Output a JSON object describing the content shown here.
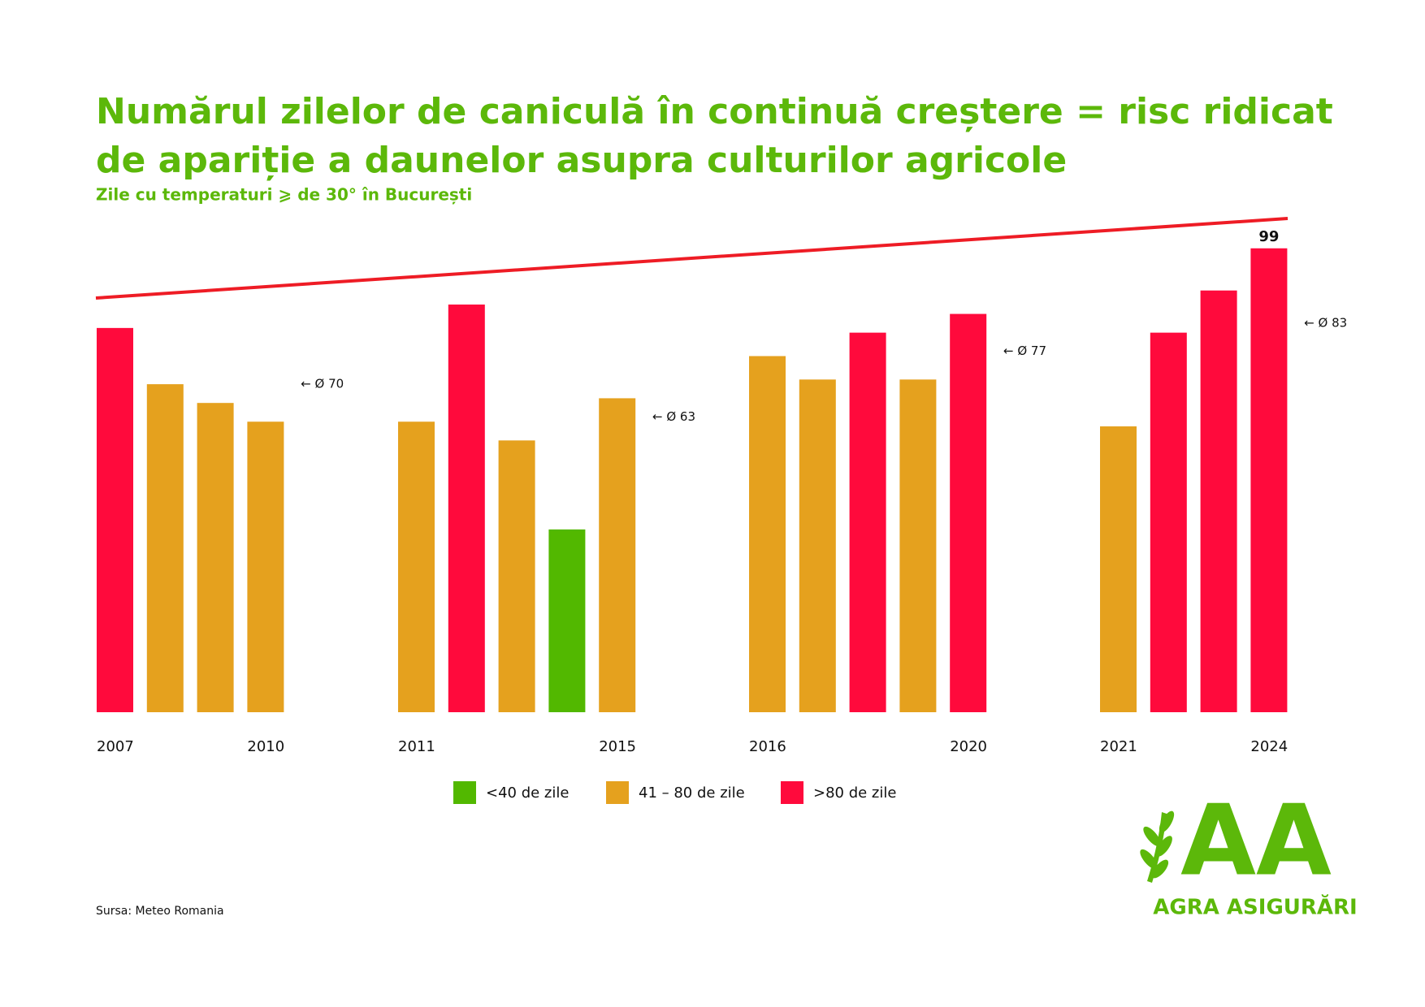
{
  "chart_data": {
    "type": "bar",
    "title": [
      "Numărul zilelor de caniculă în continuă creștere = risc ridicat",
      "de apariție a daunelor asupra culturilor agricole"
    ],
    "subtitle": "Zile cu temperaturi ⩾ de 30° în București",
    "ylim": [
      0,
      100
    ],
    "groups": [
      {
        "categories": [
          "2007",
          null,
          null,
          "2010"
        ],
        "values": [
          82,
          70,
          66,
          62
        ],
        "colors": [
          "#ff0a3c",
          "#e5a11e",
          "#e5a11e",
          "#e5a11e"
        ],
        "average": {
          "value": 70,
          "label": "← Ø 70"
        }
      },
      {
        "categories": [
          "2011",
          null,
          null,
          null,
          "2015"
        ],
        "values": [
          62,
          87,
          58,
          39,
          67
        ],
        "colors": [
          "#e5a11e",
          "#ff0a3c",
          "#e5a11e",
          "#52b800",
          "#e5a11e"
        ],
        "average": {
          "value": 63,
          "label": "← Ø 63"
        }
      },
      {
        "categories": [
          "2016",
          null,
          null,
          null,
          "2020"
        ],
        "values": [
          76,
          71,
          81,
          71,
          85
        ],
        "colors": [
          "#e5a11e",
          "#e5a11e",
          "#ff0a3c",
          "#e5a11e",
          "#ff0a3c"
        ],
        "average": {
          "value": 77,
          "label": "← Ø 77"
        }
      },
      {
        "categories": [
          "2021",
          null,
          null,
          "2024"
        ],
        "values": [
          61,
          81,
          90,
          99
        ],
        "colors": [
          "#e5a11e",
          "#ff0a3c",
          "#ff0a3c",
          "#ff0a3c"
        ],
        "value_labels": [
          null,
          null,
          null,
          "99"
        ],
        "average": {
          "value": 83,
          "label": "← Ø 83"
        }
      }
    ],
    "legend": [
      {
        "name": "<40 de zile",
        "color": "#52b800"
      },
      {
        "name": "41 – 80 de zile",
        "color": "#e5a11e"
      },
      {
        "name": ">80 de zile",
        "color": "#ff0a3c"
      }
    ],
    "source": "Sursa: Meteo Romania"
  },
  "logo": {
    "mark": "AA",
    "name": "AGRA ASIGURĂRI"
  }
}
